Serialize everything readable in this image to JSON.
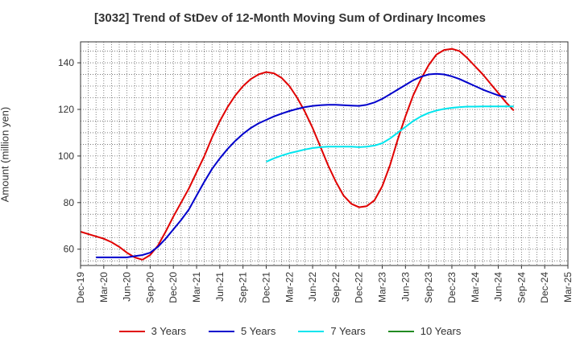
{
  "chart_data": {
    "type": "line",
    "title": "[3032]  Trend of StDev of 12-Month Moving Sum of Ordinary Incomes",
    "xlabel": "",
    "ylabel": "Amount (million yen)",
    "ylim": [
      53,
      149
    ],
    "y_ticks": [
      60,
      80,
      100,
      120,
      140
    ],
    "x_tick_labels": [
      "Dec-19",
      "Mar-20",
      "Jun-20",
      "Sep-20",
      "Dec-20",
      "Mar-21",
      "Jun-21",
      "Sep-21",
      "Dec-21",
      "Mar-22",
      "Jun-22",
      "Sep-22",
      "Dec-22",
      "Mar-23",
      "Jun-23",
      "Sep-23",
      "Dec-23",
      "Mar-24",
      "Jun-24",
      "Sep-24",
      "Dec-24",
      "Mar-25"
    ],
    "grid": true,
    "legend_position": "bottom",
    "series": [
      {
        "name": "3 Years",
        "color": "#e00000",
        "points": [
          [
            0,
            67.5
          ],
          [
            1,
            66.5
          ],
          [
            2,
            65.5
          ],
          [
            3,
            64.5
          ],
          [
            4,
            63
          ],
          [
            5,
            61
          ],
          [
            6,
            58.5
          ],
          [
            7,
            56.5
          ],
          [
            8,
            55.5
          ],
          [
            9,
            57.5
          ],
          [
            10,
            61.5
          ],
          [
            11,
            67.5
          ],
          [
            12,
            74
          ],
          [
            13,
            80
          ],
          [
            14,
            86
          ],
          [
            15,
            93
          ],
          [
            16,
            100
          ],
          [
            17,
            108
          ],
          [
            18,
            115
          ],
          [
            19,
            121
          ],
          [
            20,
            126
          ],
          [
            21,
            130
          ],
          [
            22,
            133
          ],
          [
            23,
            135
          ],
          [
            24,
            136
          ],
          [
            25,
            135.5
          ],
          [
            26,
            133.5
          ],
          [
            27,
            130
          ],
          [
            28,
            125
          ],
          [
            29,
            119
          ],
          [
            30,
            112
          ],
          [
            31,
            104
          ],
          [
            32,
            96
          ],
          [
            33,
            89
          ],
          [
            34,
            83
          ],
          [
            35,
            79.5
          ],
          [
            36,
            78
          ],
          [
            37,
            78.5
          ],
          [
            38,
            81
          ],
          [
            39,
            87
          ],
          [
            40,
            96
          ],
          [
            41,
            107
          ],
          [
            42,
            117
          ],
          [
            43,
            126
          ],
          [
            44,
            133
          ],
          [
            45,
            139
          ],
          [
            46,
            143.5
          ],
          [
            47,
            145.5
          ],
          [
            48,
            146
          ],
          [
            49,
            145
          ],
          [
            50,
            142
          ],
          [
            51,
            138.5
          ],
          [
            52,
            135
          ],
          [
            53,
            131
          ],
          [
            54,
            127
          ],
          [
            55,
            123
          ],
          [
            56,
            119.5
          ]
        ]
      },
      {
        "name": "5 Years",
        "color": "#0000cc",
        "points": [
          [
            2,
            56.5
          ],
          [
            3,
            56.5
          ],
          [
            4,
            56.5
          ],
          [
            5,
            56.5
          ],
          [
            6,
            56.5
          ],
          [
            7,
            57
          ],
          [
            8,
            57.5
          ],
          [
            9,
            58.5
          ],
          [
            10,
            61
          ],
          [
            11,
            64.5
          ],
          [
            12,
            68.5
          ],
          [
            13,
            72.5
          ],
          [
            14,
            77
          ],
          [
            15,
            83
          ],
          [
            16,
            89
          ],
          [
            17,
            94.5
          ],
          [
            18,
            99
          ],
          [
            19,
            103
          ],
          [
            20,
            106.5
          ],
          [
            21,
            109.5
          ],
          [
            22,
            112
          ],
          [
            23,
            114
          ],
          [
            24,
            115.5
          ],
          [
            25,
            117
          ],
          [
            26,
            118.2
          ],
          [
            27,
            119.3
          ],
          [
            28,
            120.2
          ],
          [
            29,
            121
          ],
          [
            30,
            121.5
          ],
          [
            31,
            121.8
          ],
          [
            32,
            122
          ],
          [
            33,
            122
          ],
          [
            34,
            121.8
          ],
          [
            35,
            121.6
          ],
          [
            36,
            121.5
          ],
          [
            37,
            122
          ],
          [
            38,
            123
          ],
          [
            39,
            124.5
          ],
          [
            40,
            126.5
          ],
          [
            41,
            128.5
          ],
          [
            42,
            130.5
          ],
          [
            43,
            132.5
          ],
          [
            44,
            134
          ],
          [
            45,
            135
          ],
          [
            46,
            135.3
          ],
          [
            47,
            135
          ],
          [
            48,
            134.2
          ],
          [
            49,
            133
          ],
          [
            50,
            131.5
          ],
          [
            51,
            130
          ],
          [
            52,
            128.5
          ],
          [
            53,
            127.2
          ],
          [
            54,
            126
          ],
          [
            55,
            125.3
          ]
        ]
      },
      {
        "name": "7 Years",
        "color": "#00e5ee",
        "points": [
          [
            24,
            97.5
          ],
          [
            25,
            99
          ],
          [
            26,
            100.2
          ],
          [
            27,
            101.2
          ],
          [
            28,
            102
          ],
          [
            29,
            102.8
          ],
          [
            30,
            103.4
          ],
          [
            31,
            103.8
          ],
          [
            32,
            104
          ],
          [
            33,
            104
          ],
          [
            34,
            104
          ],
          [
            35,
            104
          ],
          [
            36,
            103.8
          ],
          [
            37,
            104
          ],
          [
            38,
            104.5
          ],
          [
            39,
            105.5
          ],
          [
            40,
            107.5
          ],
          [
            41,
            110
          ],
          [
            42,
            112.5
          ],
          [
            43,
            115
          ],
          [
            44,
            117
          ],
          [
            45,
            118.5
          ],
          [
            46,
            119.5
          ],
          [
            47,
            120.2
          ],
          [
            48,
            120.7
          ],
          [
            49,
            121
          ],
          [
            50,
            121.2
          ],
          [
            51,
            121.2
          ],
          [
            52,
            121.3
          ],
          [
            53,
            121.3
          ],
          [
            54,
            121.3
          ],
          [
            55,
            121.3
          ],
          [
            56,
            121.3
          ]
        ]
      },
      {
        "name": "10 Years",
        "color": "#228b22",
        "points": []
      }
    ]
  }
}
